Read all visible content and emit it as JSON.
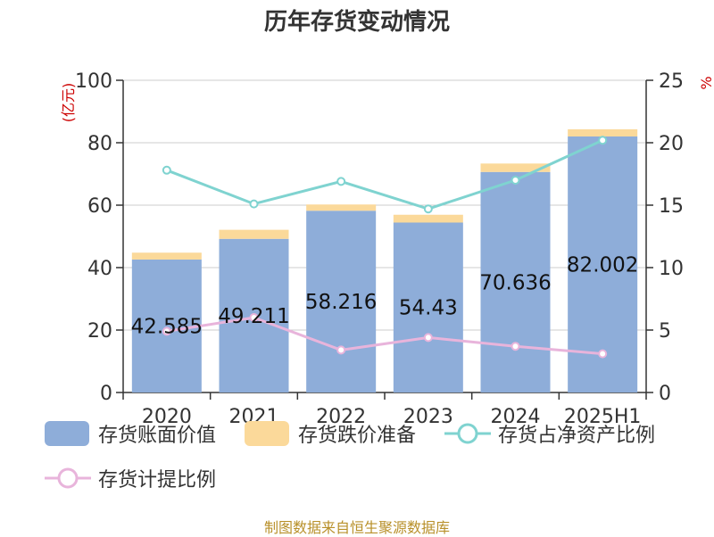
{
  "title": "历年存货变动情况",
  "source_note": "制图数据来自恒生聚源数据库",
  "colors": {
    "book_value": "#8eadd9",
    "impairment": "#fbd99a",
    "ratio_net_assets": "#7fd3d0",
    "provision_ratio": "#e8b4db",
    "axis_unit": "#cc0000"
  },
  "chart_data": {
    "type": "bar",
    "categories": [
      "2020",
      "2021",
      "2022",
      "2023",
      "2024",
      "2025H1"
    ],
    "y_left_label": "(亿元)",
    "y_left_lim": [
      0,
      100
    ],
    "y_left_ticks": [
      "0",
      "20",
      "40",
      "60",
      "80",
      "100"
    ],
    "y_right_label": "%",
    "y_right_lim": [
      0,
      25
    ],
    "y_right_ticks": [
      "0",
      "5",
      "10",
      "15",
      "20",
      "25"
    ],
    "grid": true,
    "legend_position": "bottom",
    "bar_series": [
      {
        "name": "存货账面价值",
        "values": [
          42.585,
          49.211,
          58.216,
          54.43,
          70.636,
          82.002
        ],
        "labels": [
          "42.585",
          "49.211",
          "58.216",
          "54.43",
          "70.636",
          "82.002"
        ]
      },
      {
        "name": "存货跌价准备",
        "values": [
          2.2,
          2.9,
          2.0,
          2.5,
          2.7,
          2.3
        ]
      }
    ],
    "line_series": [
      {
        "name": "存货占净资产比例",
        "values": [
          17.8,
          15.1,
          16.9,
          14.7,
          17.0,
          20.2
        ]
      },
      {
        "name": "存货计提比例",
        "values": [
          4.9,
          6.0,
          3.4,
          4.4,
          3.7,
          3.1
        ]
      }
    ]
  }
}
